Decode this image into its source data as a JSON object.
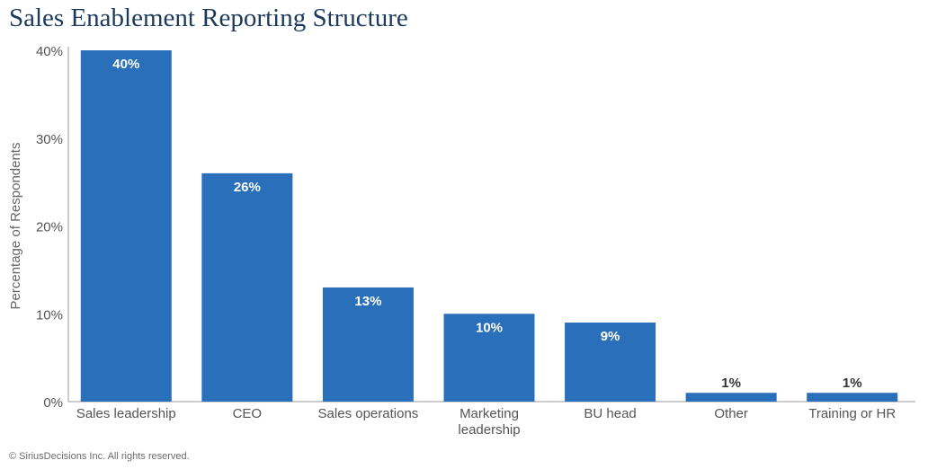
{
  "chart_data": {
    "type": "bar",
    "title": "Sales Enablement Reporting Structure",
    "xlabel": "",
    "ylabel": "Percentage of Respondents",
    "categories": [
      [
        "Sales leadership"
      ],
      [
        "CEO"
      ],
      [
        "Sales operations"
      ],
      [
        "Marketing",
        "leadership"
      ],
      [
        "BU head"
      ],
      [
        "Other"
      ],
      [
        "Training or HR"
      ]
    ],
    "values": [
      40,
      26,
      13,
      10,
      9,
      1,
      1
    ],
    "value_labels": [
      "40%",
      "26%",
      "13%",
      "10%",
      "9%",
      "1%",
      "1%"
    ],
    "yticks": [
      0,
      10,
      20,
      30,
      40
    ],
    "ytick_labels": [
      "0%",
      "10%",
      "20%",
      "30%",
      "40%"
    ],
    "ylim": [
      0,
      40
    ],
    "grid": false,
    "bar_color": "#2a6fb9",
    "label_inside_color": "#ffffff",
    "label_outside_color": "#333333"
  },
  "footer": {
    "copyright": "© SiriusDecisions Inc. All rights reserved."
  }
}
